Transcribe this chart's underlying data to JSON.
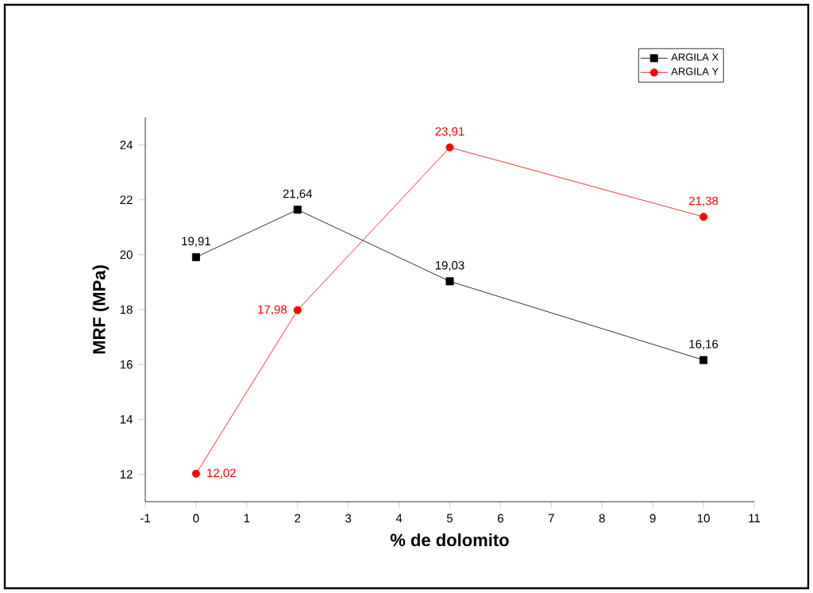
{
  "chart_data": {
    "type": "line",
    "xlabel": "% de dolomito",
    "ylabel": "MRF (MPa)",
    "x": [
      0,
      2,
      5,
      10
    ],
    "series": [
      {
        "name": "ARGILA X",
        "color": "#000000",
        "marker": "square",
        "values": [
          19.91,
          21.64,
          19.03,
          16.16
        ],
        "value_labels": [
          "19,91",
          "21,64",
          "19,03",
          "16,16"
        ]
      },
      {
        "name": "ARGILA Y",
        "color": "#ff0000",
        "marker": "circle",
        "values": [
          12.02,
          17.98,
          23.91,
          21.38
        ],
        "value_labels": [
          "12,02",
          "17,98",
          "23,91",
          "21,38"
        ]
      }
    ],
    "xlim": [
      -1,
      11
    ],
    "xticks": [
      -1,
      0,
      1,
      2,
      3,
      4,
      5,
      6,
      7,
      8,
      9,
      10,
      11
    ],
    "ylim": [
      11,
      25
    ],
    "yticks": [
      12,
      14,
      16,
      18,
      20,
      22,
      24
    ],
    "grid": false,
    "legend": "top right",
    "line_style": "solid"
  }
}
